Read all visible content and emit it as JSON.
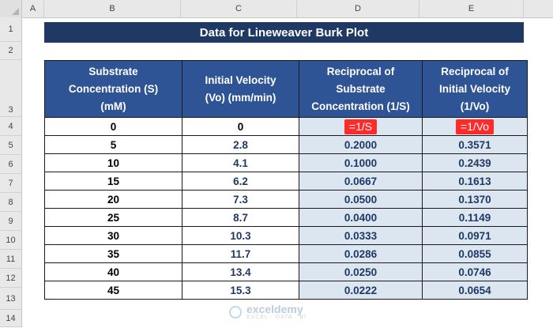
{
  "columns": [
    "A",
    "B",
    "C",
    "D",
    "E"
  ],
  "rows": [
    "1",
    "2",
    "3",
    "4",
    "5",
    "6",
    "7",
    "8",
    "9",
    "10",
    "11",
    "12",
    "13",
    "14"
  ],
  "title": "Data for Lineweaver Burk Plot",
  "headers": {
    "s": [
      "Substrate",
      "Concentration (S)",
      "(mM)"
    ],
    "v": [
      "Initial Velocity",
      "(Vo) (mm/min)"
    ],
    "rs": [
      "Reciprocal of",
      "Substrate",
      "Concentration (1/S)"
    ],
    "rv": [
      "Reciprocal of",
      "Initial Velocity",
      "(1/Vo)"
    ]
  },
  "table": [
    {
      "s": "0",
      "v": "0",
      "rs": "=1/S",
      "rv": "=1/Vo"
    },
    {
      "s": "5",
      "v": "2.8",
      "rs": "0.2000",
      "rv": "0.3571"
    },
    {
      "s": "10",
      "v": "4.1",
      "rs": "0.1000",
      "rv": "0.2439"
    },
    {
      "s": "15",
      "v": "6.2",
      "rs": "0.0667",
      "rv": "0.1613"
    },
    {
      "s": "20",
      "v": "7.3",
      "rs": "0.0500",
      "rv": "0.1370"
    },
    {
      "s": "25",
      "v": "8.7",
      "rs": "0.0400",
      "rv": "0.1149"
    },
    {
      "s": "30",
      "v": "10.3",
      "rs": "0.0333",
      "rv": "0.0971"
    },
    {
      "s": "35",
      "v": "11.7",
      "rs": "0.0286",
      "rv": "0.0855"
    },
    {
      "s": "40",
      "v": "13.4",
      "rs": "0.0250",
      "rv": "0.0746"
    },
    {
      "s": "45",
      "v": "15.3",
      "rs": "0.0222",
      "rv": "0.0654"
    }
  ],
  "watermark": {
    "name": "exceldemy",
    "tagline": "EXCEL · DATA · BI"
  },
  "colors": {
    "title_bg": "#1f3864",
    "header_bg": "#2f5496",
    "calc_bg": "#dce6f1",
    "formula_bg": "#ff2b2b"
  }
}
